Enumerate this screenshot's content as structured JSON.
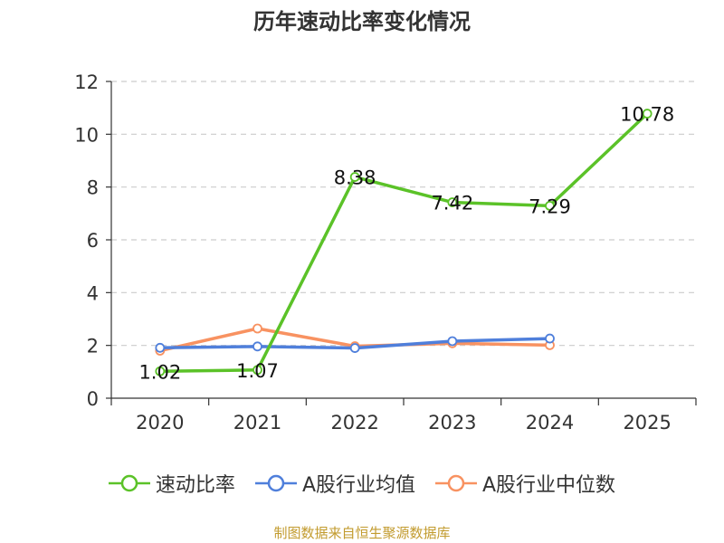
{
  "chart_data": {
    "type": "line",
    "title": "历年速动比率变化情况",
    "categories": [
      "2020",
      "2021",
      "2022",
      "2023",
      "2024",
      "2025"
    ],
    "ylim": [
      0,
      12
    ],
    "yticks": [
      0,
      2,
      4,
      6,
      8,
      10,
      12
    ],
    "grid": true,
    "legend_position": "bottom",
    "series": [
      {
        "name": "速动比率",
        "color": "#5bc228",
        "values": [
          1.02,
          1.07,
          8.38,
          7.42,
          7.29,
          10.78
        ],
        "labels": [
          "1.02",
          "1.07",
          "8.38",
          "7.42",
          "7.29",
          "10.78"
        ]
      },
      {
        "name": "A股行业均值",
        "color": "#4f7fdb",
        "values": [
          1.91,
          1.96,
          1.9,
          2.16,
          2.26,
          null
        ]
      },
      {
        "name": "A股行业中位数",
        "color": "#f89261",
        "values": [
          1.8,
          2.64,
          1.97,
          2.08,
          2.01,
          null
        ]
      }
    ]
  },
  "footer": "制图数据来自恒生聚源数据库"
}
